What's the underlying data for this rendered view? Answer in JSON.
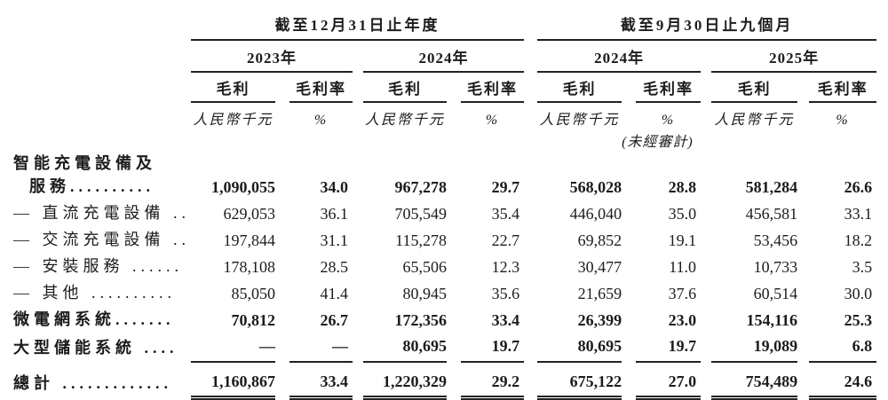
{
  "page": {
    "background": "#ffffff",
    "text_color": "#1c1c1c",
    "rule_color": "#222222"
  },
  "table": {
    "period_groups": [
      {
        "title": "截至12月31日止年度",
        "years": [
          {
            "label": "2023年"
          },
          {
            "label": "2024年"
          }
        ]
      },
      {
        "title": "截至9月30日止九個月",
        "years": [
          {
            "label": "2024年"
          },
          {
            "label": "2025年"
          }
        ]
      }
    ],
    "metric_header": {
      "gross_profit": "毛利",
      "gross_profit_margin": "毛利率"
    },
    "unit_header": {
      "amount": "人民幣千元",
      "percent": "%"
    },
    "unaudited_note": "(未經審計)",
    "rows": [
      {
        "label": "智能充電設備及",
        "bold": true,
        "indent": 0,
        "values": null
      },
      {
        "label": "服務..........",
        "bold": true,
        "indent": 1,
        "values": [
          "1,090,055",
          "34.0",
          "967,278",
          "29.7",
          "568,028",
          "28.8",
          "581,284",
          "26.6"
        ]
      },
      {
        "label": "— 直流充電設備 ..",
        "bold": false,
        "indent": 0,
        "values": [
          "629,053",
          "36.1",
          "705,549",
          "35.4",
          "446,040",
          "35.0",
          "456,581",
          "33.1"
        ]
      },
      {
        "label": "— 交流充電設備 ..",
        "bold": false,
        "indent": 0,
        "values": [
          "197,844",
          "31.1",
          "115,278",
          "22.7",
          "69,852",
          "19.1",
          "53,456",
          "18.2"
        ]
      },
      {
        "label": "— 安裝服務 ......",
        "bold": false,
        "indent": 0,
        "values": [
          "178,108",
          "28.5",
          "65,506",
          "12.3",
          "30,477",
          "11.0",
          "10,733",
          "3.5"
        ]
      },
      {
        "label": "— 其他 ..........",
        "bold": false,
        "indent": 0,
        "values": [
          "85,050",
          "41.4",
          "80,945",
          "35.6",
          "21,659",
          "37.6",
          "60,514",
          "30.0"
        ]
      },
      {
        "label": "微電網系統.......",
        "bold": true,
        "indent": 0,
        "values": [
          "70,812",
          "26.7",
          "172,356",
          "33.4",
          "26,399",
          "23.0",
          "154,116",
          "25.3"
        ]
      },
      {
        "label": "大型儲能系統 ....",
        "bold": true,
        "indent": 0,
        "rule_below": true,
        "values": [
          "—",
          "—",
          "80,695",
          "19.7",
          "80,695",
          "19.7",
          "19,089",
          "6.8"
        ]
      },
      {
        "label": "總計 .............",
        "bold": true,
        "indent": 0,
        "total": true,
        "values": [
          "1,160,867",
          "33.4",
          "1,220,329",
          "29.2",
          "675,122",
          "27.0",
          "754,489",
          "24.6"
        ]
      }
    ]
  }
}
